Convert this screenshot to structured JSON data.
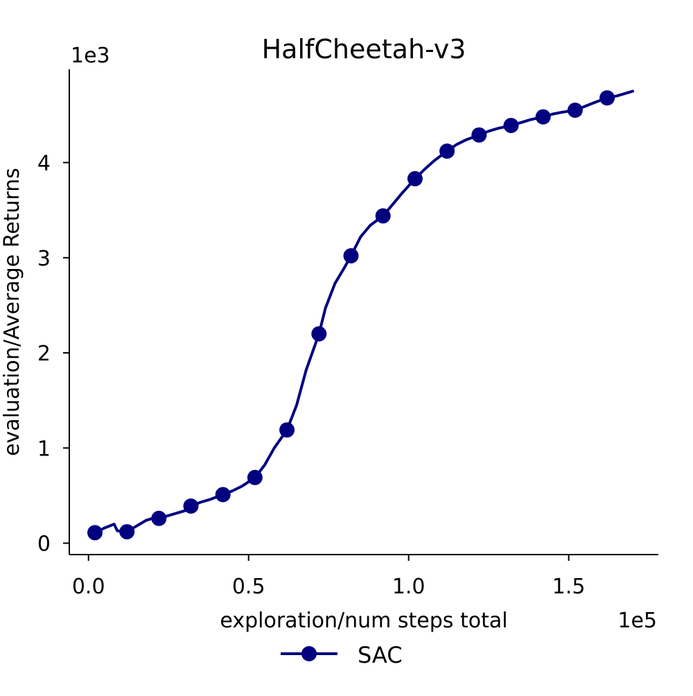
{
  "chart_data": {
    "type": "line",
    "title": "HalfCheetah-v3",
    "xlabel": "exploration/num steps total",
    "ylabel": "evaluation/Average Returns",
    "x_multiplier_label": "1e5",
    "y_multiplier_label": "1e3",
    "xlim": [
      -0.06,
      1.78
    ],
    "ylim": [
      -0.12,
      4.98
    ],
    "xticks": [
      0.0,
      0.5,
      1.0,
      1.5
    ],
    "xtick_labels": [
      "0.0",
      "0.5",
      "1.0",
      "1.5"
    ],
    "yticks": [
      0,
      1,
      2,
      3,
      4
    ],
    "ytick_labels": [
      "0",
      "1",
      "2",
      "3",
      "4"
    ],
    "grid": false,
    "legend_position": "bottom-center",
    "series": [
      {
        "name": "SAC",
        "color": "#000080",
        "x": [
          0.02,
          0.05,
          0.08,
          0.09,
          0.12,
          0.15,
          0.18,
          0.2,
          0.22,
          0.25,
          0.28,
          0.3,
          0.32,
          0.35,
          0.38,
          0.42,
          0.45,
          0.48,
          0.52,
          0.55,
          0.58,
          0.62,
          0.65,
          0.68,
          0.72,
          0.74,
          0.77,
          0.8,
          0.82,
          0.85,
          0.88,
          0.92,
          0.95,
          0.98,
          1.02,
          1.05,
          1.08,
          1.12,
          1.15,
          1.18,
          1.22,
          1.25,
          1.28,
          1.32,
          1.35,
          1.38,
          1.42,
          1.45,
          1.48,
          1.52,
          1.55,
          1.58,
          1.62,
          1.65,
          1.68,
          1.7
        ],
        "y": [
          0.11,
          0.16,
          0.2,
          0.13,
          0.12,
          0.18,
          0.24,
          0.26,
          0.26,
          0.29,
          0.32,
          0.34,
          0.39,
          0.43,
          0.46,
          0.51,
          0.55,
          0.6,
          0.69,
          0.82,
          1.0,
          1.19,
          1.45,
          1.82,
          2.2,
          2.47,
          2.73,
          2.9,
          3.02,
          3.22,
          3.34,
          3.44,
          3.56,
          3.68,
          3.83,
          3.93,
          4.02,
          4.12,
          4.19,
          4.24,
          4.29,
          4.33,
          4.36,
          4.39,
          4.42,
          4.45,
          4.48,
          4.51,
          4.53,
          4.55,
          4.59,
          4.63,
          4.68,
          4.7,
          4.73,
          4.75
        ],
        "marker_x": [
          0.02,
          0.12,
          0.22,
          0.32,
          0.42,
          0.52,
          0.62,
          0.72,
          0.82,
          0.92,
          1.02,
          1.12,
          1.22,
          1.32,
          1.42,
          1.52,
          1.62
        ],
        "marker_y": [
          0.11,
          0.12,
          0.26,
          0.39,
          0.51,
          0.69,
          1.19,
          2.2,
          3.02,
          3.44,
          3.83,
          4.12,
          4.29,
          4.39,
          4.48,
          4.55,
          4.68
        ]
      }
    ]
  }
}
